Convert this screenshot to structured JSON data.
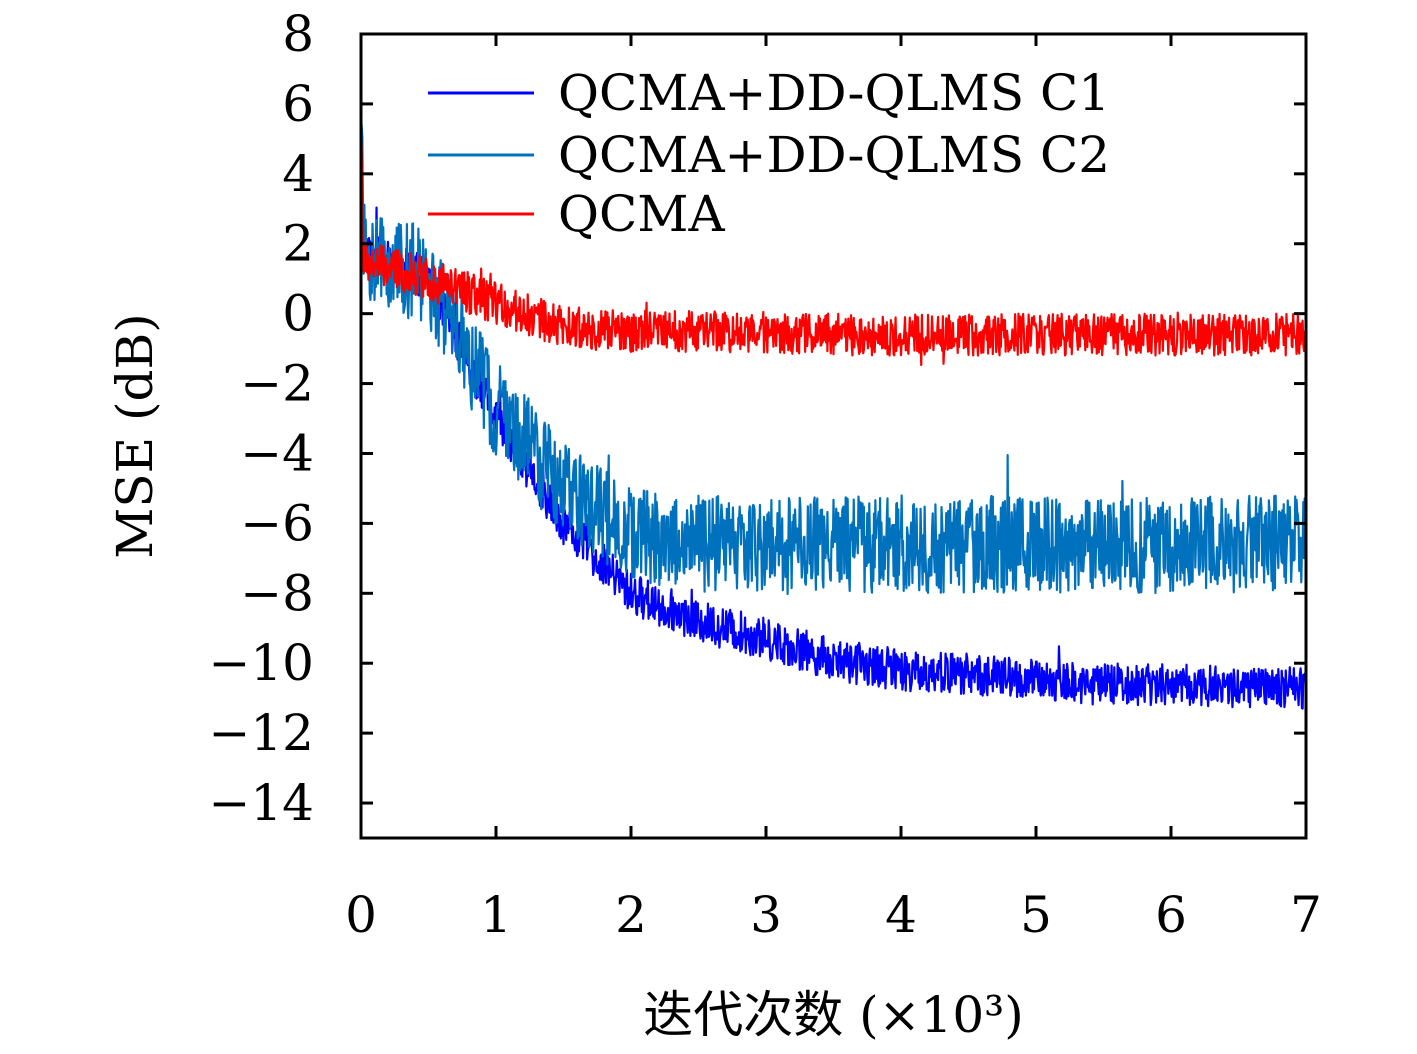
{
  "chart_data": {
    "type": "line",
    "title": "",
    "xlabel": "迭代次数 (×10³)",
    "ylabel": "MSE (dB)",
    "xlim": [
      0,
      7
    ],
    "ylim": [
      -15,
      8
    ],
    "xticks": [
      "0",
      "1",
      "2",
      "3",
      "4",
      "5",
      "6",
      "7"
    ],
    "yticks": [
      "8",
      "6",
      "4",
      "2",
      "0",
      "−2",
      "−4",
      "−6",
      "−8",
      "−10",
      "−12",
      "−14"
    ],
    "grid": false,
    "legend_position": "top-right",
    "series": [
      {
        "name": "QCMA+DD-QLMS C1",
        "color": "#0000ff",
        "x": [
          0,
          0.5,
          1.0,
          1.5,
          2.0,
          2.5,
          3.0,
          3.5,
          4.0,
          4.5,
          5.0,
          5.5,
          6.0,
          6.5,
          7.0
        ],
        "y": [
          1.8,
          1.0,
          -3.0,
          -6.0,
          -8.0,
          -8.8,
          -9.3,
          -9.9,
          -10.2,
          -10.3,
          -10.5,
          -10.6,
          -10.6,
          -10.7,
          -10.7
        ],
        "noise_amplitude": 0.6
      },
      {
        "name": "QCMA+DD-QLMS C2",
        "color": "#0072bd",
        "x": [
          0,
          0.5,
          1.0,
          1.5,
          2.0,
          2.5,
          3.0,
          3.5,
          4.0,
          4.5,
          5.0,
          5.5,
          6.0,
          6.5,
          7.0
        ],
        "y": [
          1.8,
          1.0,
          -2.7,
          -5.0,
          -6.3,
          -6.6,
          -6.6,
          -6.6,
          -6.6,
          -6.6,
          -6.6,
          -6.6,
          -6.6,
          -6.6,
          -6.6
        ],
        "noise_amplitude": 1.4
      },
      {
        "name": "QCMA",
        "color": "#ff0000",
        "x": [
          0,
          0.5,
          1.0,
          1.5,
          2.0,
          2.5,
          3.0,
          3.5,
          4.0,
          4.5,
          5.0,
          5.5,
          6.0,
          6.5,
          7.0
        ],
        "y": [
          1.5,
          1.0,
          0.3,
          -0.4,
          -0.5,
          -0.5,
          -0.55,
          -0.6,
          -0.6,
          -0.6,
          -0.6,
          -0.6,
          -0.6,
          -0.6,
          -0.6
        ],
        "noise_amplitude": 0.6
      }
    ]
  }
}
